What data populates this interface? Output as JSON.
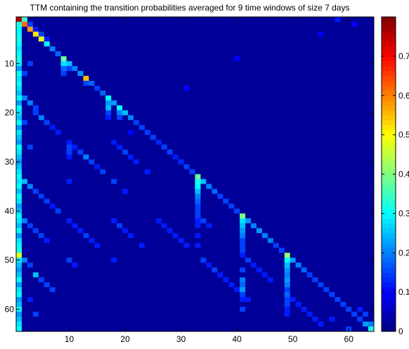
{
  "chart_data": {
    "type": "heatmap",
    "title": "TTM containing the transition probabilities averaged for 9 time windows of size 7 days",
    "xlabel": "",
    "ylabel": "",
    "size": 64,
    "xlim": [
      0.5,
      64.5
    ],
    "ylim": [
      0.5,
      64.5
    ],
    "y_direction": "top-to-bottom",
    "x_ticks": [
      10,
      20,
      30,
      40,
      50,
      60
    ],
    "y_ticks": [
      10,
      20,
      30,
      40,
      50,
      60
    ],
    "colorbar": {
      "colormap": "jet",
      "range": [
        0,
        0.8
      ],
      "ticks": [
        0,
        0.1,
        0.2,
        0.3,
        0.4,
        0.5,
        0.6,
        0.7
      ],
      "tick_labels": [
        "0",
        "0.1",
        "0.2",
        "0.3",
        "0.4",
        "0.5",
        "0.6",
        "0.7"
      ]
    },
    "background_value": 0.02,
    "cells": [
      [
        1,
        1,
        0.76
      ],
      [
        2,
        2,
        0.62
      ],
      [
        3,
        3,
        0.58
      ],
      [
        4,
        4,
        0.52
      ],
      [
        5,
        5,
        0.48
      ],
      [
        6,
        6,
        0.3
      ],
      [
        7,
        7,
        0.2
      ],
      [
        8,
        8,
        0.18
      ],
      [
        9,
        9,
        0.38
      ],
      [
        10,
        10,
        0.25
      ],
      [
        11,
        11,
        0.2
      ],
      [
        12,
        12,
        0.22
      ],
      [
        13,
        13,
        0.55
      ],
      [
        14,
        14,
        0.18
      ],
      [
        15,
        15,
        0.15
      ],
      [
        16,
        16,
        0.18
      ],
      [
        17,
        17,
        0.3
      ],
      [
        18,
        18,
        0.22
      ],
      [
        19,
        19,
        0.3
      ],
      [
        20,
        20,
        0.25
      ],
      [
        21,
        21,
        0.2
      ],
      [
        22,
        22,
        0.15
      ],
      [
        23,
        23,
        0.15
      ],
      [
        24,
        24,
        0.15
      ],
      [
        25,
        25,
        0.15
      ],
      [
        26,
        26,
        0.13
      ],
      [
        27,
        27,
        0.15
      ],
      [
        28,
        28,
        0.15
      ],
      [
        29,
        29,
        0.12
      ],
      [
        30,
        30,
        0.13
      ],
      [
        31,
        31,
        0.15
      ],
      [
        32,
        32,
        0.15
      ],
      [
        33,
        33,
        0.38
      ],
      [
        34,
        34,
        0.25
      ],
      [
        35,
        35,
        0.2
      ],
      [
        36,
        36,
        0.18
      ],
      [
        37,
        37,
        0.15
      ],
      [
        38,
        38,
        0.15
      ],
      [
        39,
        39,
        0.15
      ],
      [
        40,
        40,
        0.15
      ],
      [
        41,
        41,
        0.4
      ],
      [
        42,
        42,
        0.22
      ],
      [
        43,
        43,
        0.2
      ],
      [
        44,
        44,
        0.22
      ],
      [
        45,
        45,
        0.2
      ],
      [
        46,
        46,
        0.2
      ],
      [
        47,
        47,
        0.15
      ],
      [
        48,
        48,
        0.15
      ],
      [
        49,
        49,
        0.42
      ],
      [
        50,
        50,
        0.22
      ],
      [
        51,
        51,
        0.2
      ],
      [
        52,
        52,
        0.18
      ],
      [
        53,
        53,
        0.15
      ],
      [
        54,
        54,
        0.15
      ],
      [
        55,
        55,
        0.15
      ],
      [
        56,
        56,
        0.15
      ],
      [
        57,
        57,
        0.15
      ],
      [
        58,
        58,
        0.15
      ],
      [
        59,
        59,
        0.15
      ],
      [
        60,
        60,
        0.15
      ],
      [
        61,
        61,
        0.15
      ],
      [
        62,
        62,
        0.15
      ],
      [
        63,
        63,
        0.22
      ],
      [
        64,
        64,
        0.32
      ],
      [
        1,
        2,
        0.32
      ],
      [
        1,
        3,
        0.3
      ],
      [
        1,
        4,
        0.3
      ],
      [
        1,
        5,
        0.32
      ],
      [
        1,
        6,
        0.3
      ],
      [
        1,
        7,
        0.28
      ],
      [
        1,
        8,
        0.3
      ],
      [
        1,
        9,
        0.32
      ],
      [
        1,
        10,
        0.3
      ],
      [
        1,
        11,
        0.22
      ],
      [
        1,
        12,
        0.3
      ],
      [
        1,
        13,
        0.28
      ],
      [
        1,
        14,
        0.3
      ],
      [
        1,
        15,
        0.28
      ],
      [
        1,
        16,
        0.25
      ],
      [
        1,
        17,
        0.3
      ],
      [
        1,
        18,
        0.22
      ],
      [
        1,
        19,
        0.3
      ],
      [
        1,
        20,
        0.28
      ],
      [
        1,
        21,
        0.25
      ],
      [
        1,
        22,
        0.3
      ],
      [
        1,
        23,
        0.22
      ],
      [
        1,
        24,
        0.28
      ],
      [
        1,
        25,
        0.25
      ],
      [
        1,
        26,
        0.22
      ],
      [
        1,
        27,
        0.3
      ],
      [
        1,
        28,
        0.28
      ],
      [
        1,
        29,
        0.25
      ],
      [
        1,
        30,
        0.22
      ],
      [
        1,
        31,
        0.25
      ],
      [
        1,
        32,
        0.28
      ],
      [
        1,
        33,
        0.3
      ],
      [
        1,
        34,
        0.28
      ],
      [
        1,
        35,
        0.3
      ],
      [
        1,
        36,
        0.25
      ],
      [
        1,
        37,
        0.3
      ],
      [
        1,
        38,
        0.28
      ],
      [
        1,
        39,
        0.22
      ],
      [
        1,
        40,
        0.25
      ],
      [
        1,
        41,
        0.3
      ],
      [
        1,
        42,
        0.28
      ],
      [
        1,
        43,
        0.25
      ],
      [
        1,
        44,
        0.3
      ],
      [
        1,
        45,
        0.22
      ],
      [
        1,
        46,
        0.28
      ],
      [
        1,
        47,
        0.3
      ],
      [
        1,
        48,
        0.32
      ],
      [
        1,
        49,
        0.48
      ],
      [
        1,
        50,
        0.28
      ],
      [
        1,
        51,
        0.25
      ],
      [
        1,
        52,
        0.22
      ],
      [
        1,
        53,
        0.25
      ],
      [
        1,
        54,
        0.3
      ],
      [
        1,
        55,
        0.22
      ],
      [
        1,
        56,
        0.28
      ],
      [
        1,
        57,
        0.3
      ],
      [
        1,
        58,
        0.22
      ],
      [
        1,
        59,
        0.25
      ],
      [
        1,
        60,
        0.3
      ],
      [
        1,
        61,
        0.22
      ],
      [
        1,
        62,
        0.25
      ],
      [
        1,
        63,
        0.28
      ],
      [
        1,
        64,
        0.3
      ],
      [
        2,
        1,
        0.35
      ],
      [
        3,
        2,
        0.15
      ],
      [
        4,
        3,
        0.12
      ],
      [
        5,
        4,
        0.15
      ],
      [
        6,
        5,
        0.12
      ],
      [
        9,
        10,
        0.28
      ],
      [
        9,
        11,
        0.18
      ],
      [
        9,
        12,
        0.15
      ],
      [
        10,
        11,
        0.15
      ],
      [
        13,
        14,
        0.15
      ],
      [
        17,
        18,
        0.22
      ],
      [
        17,
        19,
        0.25
      ],
      [
        17,
        20,
        0.15
      ],
      [
        17,
        21,
        0.12
      ],
      [
        19,
        20,
        0.2
      ],
      [
        19,
        21,
        0.15
      ],
      [
        33,
        34,
        0.32
      ],
      [
        33,
        35,
        0.3
      ],
      [
        33,
        36,
        0.25
      ],
      [
        33,
        37,
        0.2
      ],
      [
        33,
        38,
        0.18
      ],
      [
        33,
        39,
        0.15
      ],
      [
        33,
        40,
        0.15
      ],
      [
        33,
        41,
        0.15
      ],
      [
        33,
        42,
        0.12
      ],
      [
        33,
        43,
        0.12
      ],
      [
        33,
        45,
        0.12
      ],
      [
        33,
        47,
        0.12
      ],
      [
        41,
        42,
        0.28
      ],
      [
        41,
        43,
        0.25
      ],
      [
        41,
        44,
        0.22
      ],
      [
        41,
        45,
        0.2
      ],
      [
        41,
        46,
        0.15
      ],
      [
        41,
        47,
        0.15
      ],
      [
        41,
        48,
        0.15
      ],
      [
        41,
        49,
        0.12
      ],
      [
        41,
        52,
        0.15
      ],
      [
        41,
        54,
        0.2
      ],
      [
        41,
        55,
        0.18
      ],
      [
        41,
        56,
        0.22
      ],
      [
        41,
        57,
        0.15
      ],
      [
        41,
        58,
        0.12
      ],
      [
        41,
        60,
        0.15
      ],
      [
        49,
        50,
        0.3
      ],
      [
        49,
        51,
        0.25
      ],
      [
        49,
        52,
        0.22
      ],
      [
        49,
        53,
        0.2
      ],
      [
        49,
        54,
        0.22
      ],
      [
        49,
        55,
        0.2
      ],
      [
        49,
        56,
        0.15
      ],
      [
        49,
        57,
        0.18
      ],
      [
        49,
        58,
        0.15
      ],
      [
        49,
        59,
        0.15
      ],
      [
        49,
        60,
        0.12
      ],
      [
        49,
        61,
        0.12
      ],
      [
        2,
        12,
        0.15
      ],
      [
        2,
        17,
        0.2
      ],
      [
        2,
        22,
        0.15
      ],
      [
        2,
        34,
        0.25
      ],
      [
        2,
        42,
        0.2
      ],
      [
        2,
        50,
        0.2
      ],
      [
        3,
        10,
        0.15
      ],
      [
        3,
        18,
        0.2
      ],
      [
        3,
        27,
        0.15
      ],
      [
        3,
        35,
        0.2
      ],
      [
        3,
        43,
        0.15
      ],
      [
        3,
        51,
        0.15
      ],
      [
        3,
        58,
        0.12
      ],
      [
        4,
        19,
        0.15
      ],
      [
        4,
        20,
        0.15
      ],
      [
        4,
        36,
        0.15
      ],
      [
        4,
        44,
        0.15
      ],
      [
        4,
        53,
        0.25
      ],
      [
        4,
        61,
        0.15
      ],
      [
        5,
        21,
        0.2
      ],
      [
        5,
        37,
        0.15
      ],
      [
        5,
        45,
        0.15
      ],
      [
        5,
        54,
        0.15
      ],
      [
        6,
        22,
        0.15
      ],
      [
        6,
        38,
        0.15
      ],
      [
        6,
        46,
        0.12
      ],
      [
        6,
        55,
        0.15
      ],
      [
        7,
        23,
        0.12
      ],
      [
        7,
        39,
        0.12
      ],
      [
        7,
        56,
        0.15
      ],
      [
        8,
        24,
        0.12
      ],
      [
        8,
        40,
        0.15
      ],
      [
        10,
        26,
        0.12
      ],
      [
        10,
        27,
        0.15
      ],
      [
        10,
        28,
        0.15
      ],
      [
        10,
        29,
        0.12
      ],
      [
        10,
        34,
        0.12
      ],
      [
        10,
        42,
        0.12
      ],
      [
        10,
        50,
        0.15
      ],
      [
        11,
        27,
        0.12
      ],
      [
        11,
        43,
        0.12
      ],
      [
        11,
        51,
        0.12
      ],
      [
        12,
        28,
        0.15
      ],
      [
        12,
        44,
        0.12
      ],
      [
        13,
        29,
        0.2
      ],
      [
        13,
        45,
        0.15
      ],
      [
        14,
        30,
        0.15
      ],
      [
        14,
        46,
        0.12
      ],
      [
        15,
        31,
        0.12
      ],
      [
        15,
        47,
        0.12
      ],
      [
        16,
        32,
        0.15
      ],
      [
        18,
        26,
        0.12
      ],
      [
        18,
        34,
        0.15
      ],
      [
        18,
        42,
        0.12
      ],
      [
        18,
        50,
        0.12
      ],
      [
        19,
        27,
        0.12
      ],
      [
        19,
        43,
        0.15
      ],
      [
        20,
        28,
        0.15
      ],
      [
        20,
        36,
        0.12
      ],
      [
        20,
        44,
        0.12
      ],
      [
        21,
        29,
        0.12
      ],
      [
        21,
        45,
        0.12
      ],
      [
        22,
        30,
        0.12
      ],
      [
        23,
        47,
        0.12
      ],
      [
        24,
        32,
        0.12
      ],
      [
        26,
        42,
        0.12
      ],
      [
        27,
        43,
        0.12
      ],
      [
        28,
        44,
        0.12
      ],
      [
        29,
        45,
        0.12
      ],
      [
        30,
        46,
        0.12
      ],
      [
        31,
        47,
        0.12
      ],
      [
        34,
        42,
        0.15
      ],
      [
        34,
        50,
        0.15
      ],
      [
        35,
        43,
        0.12
      ],
      [
        35,
        51,
        0.12
      ],
      [
        36,
        52,
        0.15
      ],
      [
        37,
        53,
        0.12
      ],
      [
        38,
        54,
        0.12
      ],
      [
        39,
        55,
        0.12
      ],
      [
        40,
        56,
        0.12
      ],
      [
        42,
        50,
        0.15
      ],
      [
        42,
        58,
        0.12
      ],
      [
        43,
        51,
        0.12
      ],
      [
        44,
        52,
        0.12
      ],
      [
        45,
        53,
        0.12
      ],
      [
        46,
        54,
        0.12
      ],
      [
        50,
        58,
        0.12
      ],
      [
        51,
        59,
        0.12
      ],
      [
        52,
        60,
        0.12
      ],
      [
        53,
        61,
        0.12
      ],
      [
        54,
        62,
        0.12
      ],
      [
        55,
        63,
        0.12
      ],
      [
        57,
        62,
        0.12
      ],
      [
        60,
        64,
        0.15
      ],
      [
        62,
        60,
        0.12
      ],
      [
        63,
        61,
        0.15
      ],
      [
        64,
        63,
        0.2
      ],
      [
        58,
        1,
        0.12
      ],
      [
        61,
        2,
        0.1
      ],
      [
        55,
        4,
        0.1
      ],
      [
        31,
        15,
        0.1
      ],
      [
        40,
        9,
        0.1
      ],
      [
        21,
        24,
        0.1
      ]
    ]
  }
}
